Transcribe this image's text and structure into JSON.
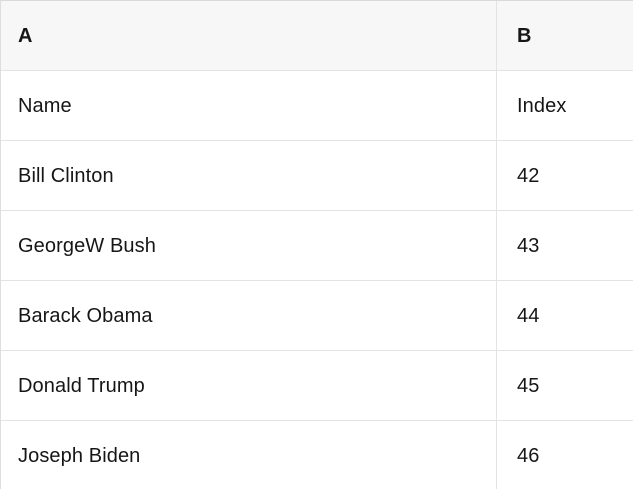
{
  "table": {
    "column_letters": [
      "A",
      "B"
    ],
    "rows": [
      {
        "a": "Name",
        "b": "Index"
      },
      {
        "a": "Bill Clinton",
        "b": "42"
      },
      {
        "a": "GeorgeW Bush",
        "b": "43"
      },
      {
        "a": "Barack Obama",
        "b": "44"
      },
      {
        "a": "Donald Trump",
        "b": "45"
      },
      {
        "a": "Joseph Biden",
        "b": "46"
      }
    ]
  },
  "colors": {
    "header_bg": "#f7f7f7",
    "row_bg": "#ffffff",
    "border": "#e3e3e3",
    "text": "#161616"
  }
}
